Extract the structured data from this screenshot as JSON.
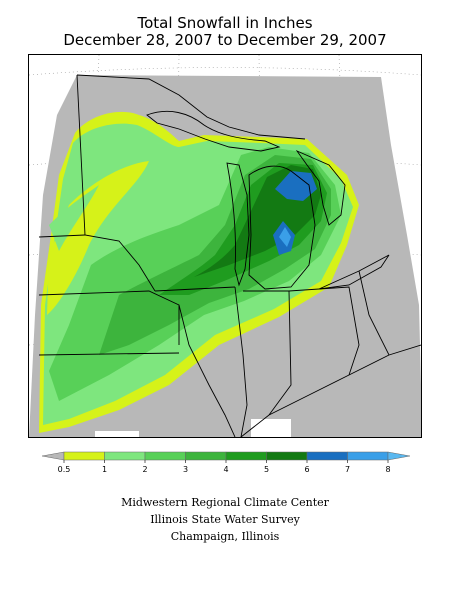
{
  "map": {
    "title_line1": "Total Snowfall in Inches",
    "title_line2": "December 28, 2007 to December 29, 2007",
    "region": "Upper Midwest / Great Lakes"
  },
  "legend": {
    "unit": "inches",
    "bins": [
      {
        "from": null,
        "to": 0.5,
        "color": "#b8b8b8"
      },
      {
        "from": 0.5,
        "to": 1,
        "color": "#d6f219"
      },
      {
        "from": 1,
        "to": 2,
        "color": "#7ee67e"
      },
      {
        "from": 2,
        "to": 3,
        "color": "#58d058"
      },
      {
        "from": 3,
        "to": 4,
        "color": "#3db43d"
      },
      {
        "from": 4,
        "to": 5,
        "color": "#1f9c1f"
      },
      {
        "from": 5,
        "to": 6,
        "color": "#137a13"
      },
      {
        "from": 6,
        "to": 7,
        "color": "#1a6fc0"
      },
      {
        "from": 7,
        "to": 8,
        "color": "#3a9fe8"
      },
      {
        "from": 8,
        "to": null,
        "color": "#5ab8f0"
      }
    ],
    "tick_labels": [
      "0.5",
      "1",
      "2",
      "3",
      "4",
      "5",
      "6",
      "7",
      "8"
    ]
  },
  "credits": {
    "line1": "Midwestern Regional Climate Center",
    "line2": "Illinois State Water Survey",
    "line3": "Champaign, Illinois"
  },
  "colors": {
    "no_data": "#ffffff",
    "background_gray": "#b8b8b8",
    "boundary": "#000000"
  }
}
